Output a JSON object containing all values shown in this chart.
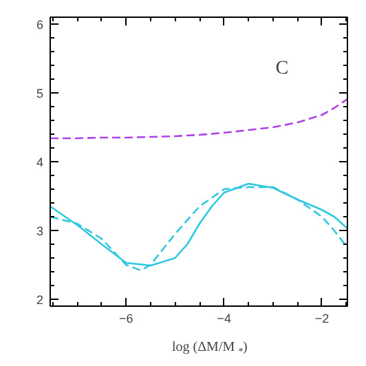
{
  "chart_data": {
    "type": "line",
    "xlabel": "log (ΔM/M$_{*}$)",
    "xlim": [
      -7.55,
      -1.48
    ],
    "ylim": [
      1.9,
      6.1
    ],
    "xticks": [
      -6,
      -4,
      -2
    ],
    "yticks": [
      2,
      3,
      4,
      5,
      6
    ],
    "grid": false,
    "marker": "none",
    "annotations": [
      "C"
    ],
    "series": [
      {
        "color": "#b040e8",
        "line_style": "dashed",
        "x": [
          -7.55,
          -7,
          -6.5,
          -6,
          -5.5,
          -5,
          -4.5,
          -4,
          -3.5,
          -3,
          -2.5,
          -2,
          -1.75,
          -1.48
        ],
        "values": [
          4.34,
          4.34,
          4.35,
          4.35,
          4.36,
          4.37,
          4.39,
          4.42,
          4.46,
          4.5,
          4.57,
          4.68,
          4.78,
          4.91
        ]
      },
      {
        "color": "#30c8e0",
        "line_style": "solid",
        "x": [
          -7.55,
          -7,
          -6.5,
          -6,
          -5.5,
          -5,
          -4.75,
          -4.5,
          -4.25,
          -4,
          -3.5,
          -3,
          -2.5,
          -2,
          -1.75,
          -1.48
        ],
        "values": [
          3.35,
          3.08,
          2.8,
          2.53,
          2.49,
          2.6,
          2.8,
          3.1,
          3.35,
          3.55,
          3.68,
          3.62,
          3.45,
          3.3,
          3.2,
          3.03
        ]
      },
      {
        "color": "#30c8e0",
        "line_style": "dashed",
        "x": [
          -7.55,
          -7,
          -6.5,
          -6,
          -5.7,
          -5.5,
          -5,
          -4.5,
          -4,
          -3.5,
          -3,
          -2.5,
          -2,
          -1.75,
          -1.48
        ],
        "values": [
          3.2,
          3.1,
          2.88,
          2.5,
          2.42,
          2.5,
          2.95,
          3.35,
          3.6,
          3.63,
          3.63,
          3.45,
          3.2,
          3.0,
          2.75
        ]
      }
    ]
  }
}
